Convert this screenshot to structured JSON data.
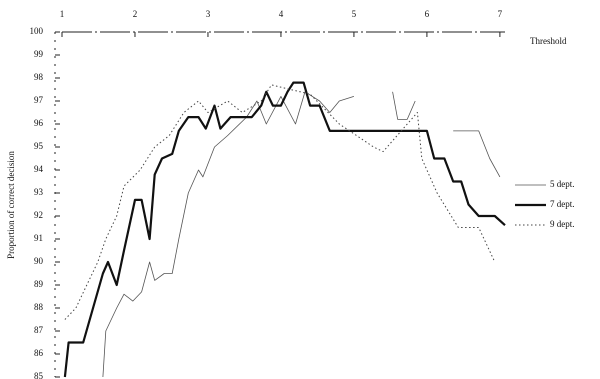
{
  "chart_data": {
    "type": "line",
    "x_label": "Threshold",
    "y_label": "Proportion of correct decision",
    "xlim": [
      1,
      7.07
    ],
    "xticks": [
      1,
      2,
      3,
      4,
      5,
      6,
      7
    ],
    "ylim": [
      85,
      100
    ],
    "yticks": [
      85,
      86,
      87,
      88,
      89,
      90,
      91,
      92,
      93,
      94,
      95,
      96,
      97,
      98,
      99,
      100
    ],
    "series": [
      {
        "name": "5 dept.",
        "color": "#555555",
        "line_width": 0.8,
        "dashed": false,
        "x": [
          1.56,
          1.6,
          1.75,
          1.85,
          1.97,
          2.09,
          2.2,
          2.27,
          2.4,
          2.51,
          2.6,
          2.73,
          2.87,
          2.93,
          3.09,
          3.27,
          3.53,
          3.67,
          3.8,
          4.0,
          4.2,
          4.33,
          4.53,
          4.67,
          4.8,
          5.0,
          5.3,
          5.53,
          5.6,
          5.73,
          5.84,
          6.2,
          6.36,
          6.71,
          6.86,
          7.0
        ],
        "values": [
          85,
          87,
          88,
          88.6,
          88.3,
          88.7,
          90,
          89.2,
          89.5,
          89.5,
          91,
          93,
          94,
          93.7,
          95,
          95.5,
          96.3,
          97,
          96,
          97.2,
          96,
          97.4,
          97,
          96.5,
          97,
          97.2,
          null,
          97.4,
          96.2,
          96.2,
          97,
          null,
          95.7,
          95.7,
          94.5,
          93.7
        ]
      },
      {
        "name": "7 dept.",
        "color": "#111111",
        "line_width": 2.2,
        "dashed": false,
        "x": [
          1.04,
          1.09,
          1.29,
          1.56,
          1.63,
          1.75,
          1.85,
          2.0,
          2.09,
          2.2,
          2.27,
          2.37,
          2.51,
          2.6,
          2.73,
          2.87,
          2.97,
          3.09,
          3.17,
          3.31,
          3.6,
          3.73,
          3.8,
          3.89,
          4.0,
          4.09,
          4.17,
          4.31,
          4.4,
          4.53,
          4.67,
          6.0,
          6.1,
          6.24,
          6.36,
          6.47,
          6.57,
          6.71,
          6.93,
          7.07
        ],
        "values": [
          85,
          86.5,
          86.5,
          89.5,
          90,
          89,
          90.5,
          92.7,
          92.7,
          91,
          93.8,
          94.5,
          94.7,
          95.7,
          96.3,
          96.3,
          95.8,
          96.8,
          95.8,
          96.3,
          96.3,
          96.8,
          97.4,
          96.8,
          96.8,
          97.4,
          97.8,
          97.8,
          96.8,
          96.8,
          95.7,
          95.7,
          94.5,
          94.5,
          93.5,
          93.5,
          92.5,
          92,
          92,
          91.6
        ]
      },
      {
        "name": "9 dept.",
        "color": "#444444",
        "line_width": 1,
        "dashed": true,
        "x": [
          1.04,
          1.19,
          1.34,
          1.49,
          1.6,
          1.75,
          1.85,
          2.07,
          2.27,
          2.47,
          2.67,
          2.87,
          3.0,
          3.27,
          3.47,
          3.73,
          3.87,
          4.13,
          4.4,
          4.8,
          5.27,
          5.4,
          5.87,
          5.93,
          6.14,
          6.43,
          6.71,
          6.93
        ],
        "values": [
          87.5,
          88,
          89,
          90,
          91,
          92,
          93.3,
          94,
          95,
          95.5,
          96.5,
          97,
          96.5,
          97,
          96.5,
          97,
          97.7,
          97.5,
          97.3,
          96,
          95,
          94.8,
          96.5,
          94.5,
          93,
          91.5,
          91.5,
          90
        ]
      }
    ]
  }
}
